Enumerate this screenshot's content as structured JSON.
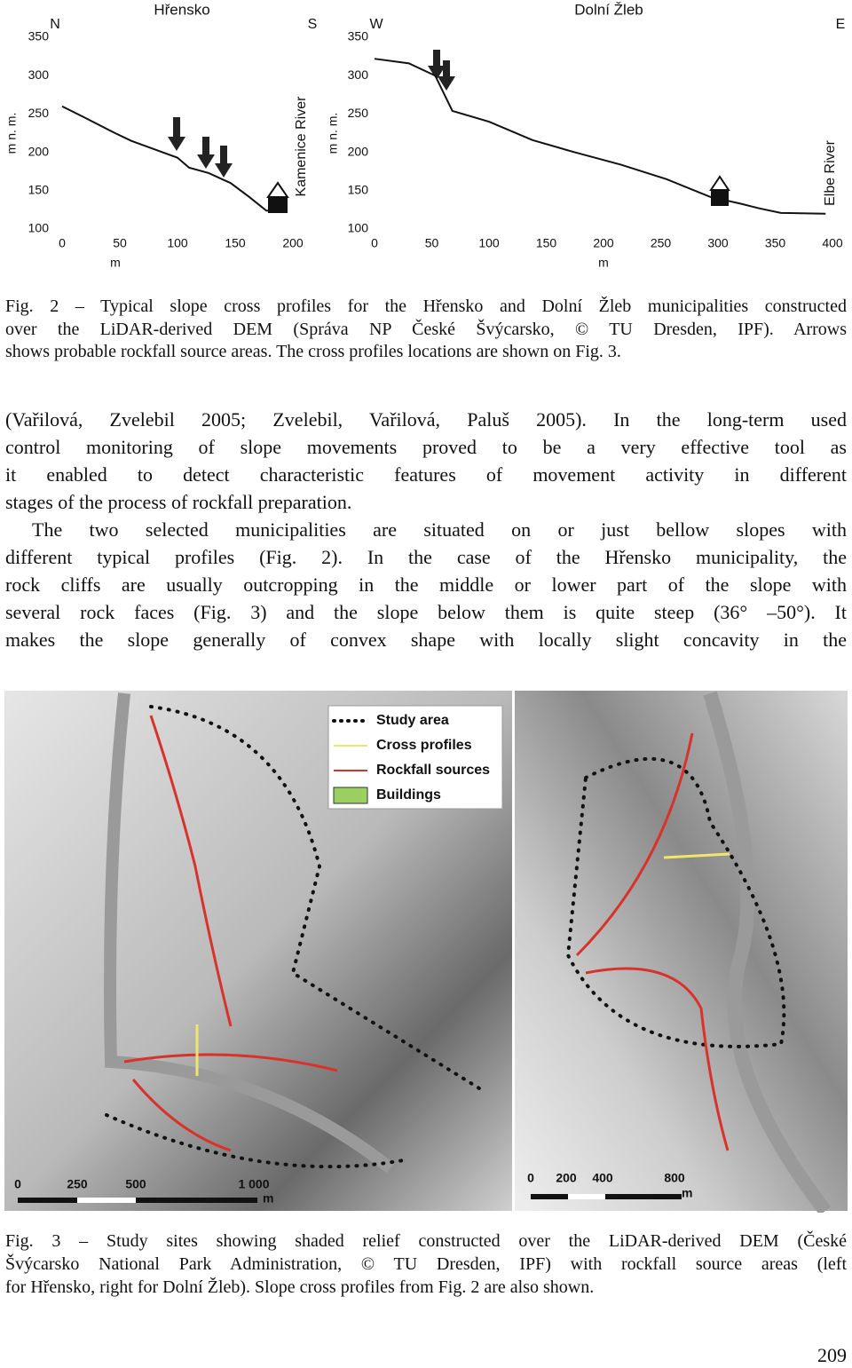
{
  "chart_data": [
    {
      "type": "line",
      "title": "Hřensko",
      "annotations": [
        "N",
        "S",
        "Kamenice River"
      ],
      "y_label": "m n. m.",
      "x_label": "m",
      "x": [
        0,
        20,
        46,
        60,
        80,
        100,
        110,
        127,
        146,
        162,
        177,
        194
      ],
      "series": [
        {
          "color": "#111111",
          "values": [
            260,
            245,
            225,
            215,
            204,
            193,
            180,
            173,
            160,
            142,
            124,
            123
          ]
        }
      ],
      "xlim": [
        0,
        200
      ],
      "xticks": [
        0,
        50,
        100,
        150,
        200
      ],
      "ylim": [
        100,
        350
      ],
      "yticks": [
        100,
        150,
        200,
        250,
        300,
        350
      ]
    },
    {
      "type": "line",
      "title": "Dolní Žleb",
      "annotations": [
        "W",
        "E",
        "Elbe River"
      ],
      "y_label": "m n. m.",
      "x_label": "m",
      "x": [
        0,
        30,
        53,
        68,
        100,
        138,
        175,
        215,
        255,
        293,
        320,
        336,
        355,
        394
      ],
      "series": [
        {
          "color": "#111111",
          "values": [
            322,
            316,
            300,
            254,
            240,
            216,
            200,
            184,
            165,
            142,
            133,
            127,
            121,
            120
          ]
        }
      ],
      "xlim": [
        0,
        400
      ],
      "xticks": [
        0,
        50,
        100,
        150,
        200,
        250,
        300,
        350,
        400
      ],
      "ylim": [
        100,
        350
      ],
      "yticks": [
        100,
        150,
        200,
        250,
        300,
        350
      ]
    }
  ],
  "caption1": [
    "Fig. 2 – Typical slope cross profiles for the Hřensko and Dolní Žleb municipalities constructed",
    "over the LiDAR-derived DEM (Správa NP České Švýcarsko, © TU Dresden, IPF). Arrows",
    "shows probable rockfall source areas. The cross profiles locations are shown on Fig. 3."
  ],
  "body": [
    "(Vařilová, Zvelebil 2005; Zvelebil, Vařilová, Paluš 2005). In the long-term used",
    "control monitoring of slope movements proved to be a very effective tool as",
    "it enabled to detect characteristic features of movement activity in different",
    "stages of the process of rockfall preparation.",
    "The two selected municipalities are situated on or just bellow slopes with",
    "different typical profiles (Fig. 2). In the case of the Hřensko municipality, the",
    "rock cliffs are usually outcropping in the middle or lower part of the slope with",
    "several rock faces (Fig. 3) and the slope below them is quite steep (36° –50°). It",
    "makes the slope generally of convex shape with locally slight concavity in the"
  ],
  "map": {
    "legend": [
      "Study area",
      "Cross profiles",
      "Rockfall sources",
      "Buildings"
    ],
    "scale_left": [
      "0",
      "250",
      "500",
      "1 000",
      "m"
    ],
    "scale_right": [
      "0",
      "200",
      "400",
      "800",
      "m"
    ]
  },
  "caption2": [
    "Fig. 3 – Study sites showing shaded relief constructed over the LiDAR-derived DEM (České",
    "Švýcarsko National Park Administration, © TU Dresden, IPF) with rockfall source areas (left",
    "for Hřensko, right for Dolní Žleb). Slope cross profiles from Fig. 2 are also shown."
  ],
  "page_number": "209"
}
